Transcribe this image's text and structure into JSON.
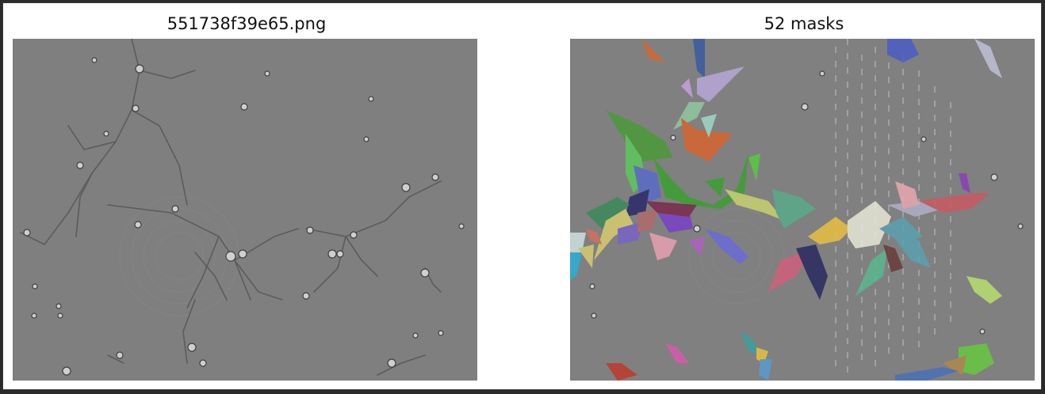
{
  "figure": {
    "left_panel": {
      "title": "551738f39e65.png"
    },
    "right_panel": {
      "title": "52 masks"
    }
  },
  "colors": {
    "figure_background": "#ffffff",
    "image_gray": "#808080",
    "window_border": "#2b2b2b"
  }
}
